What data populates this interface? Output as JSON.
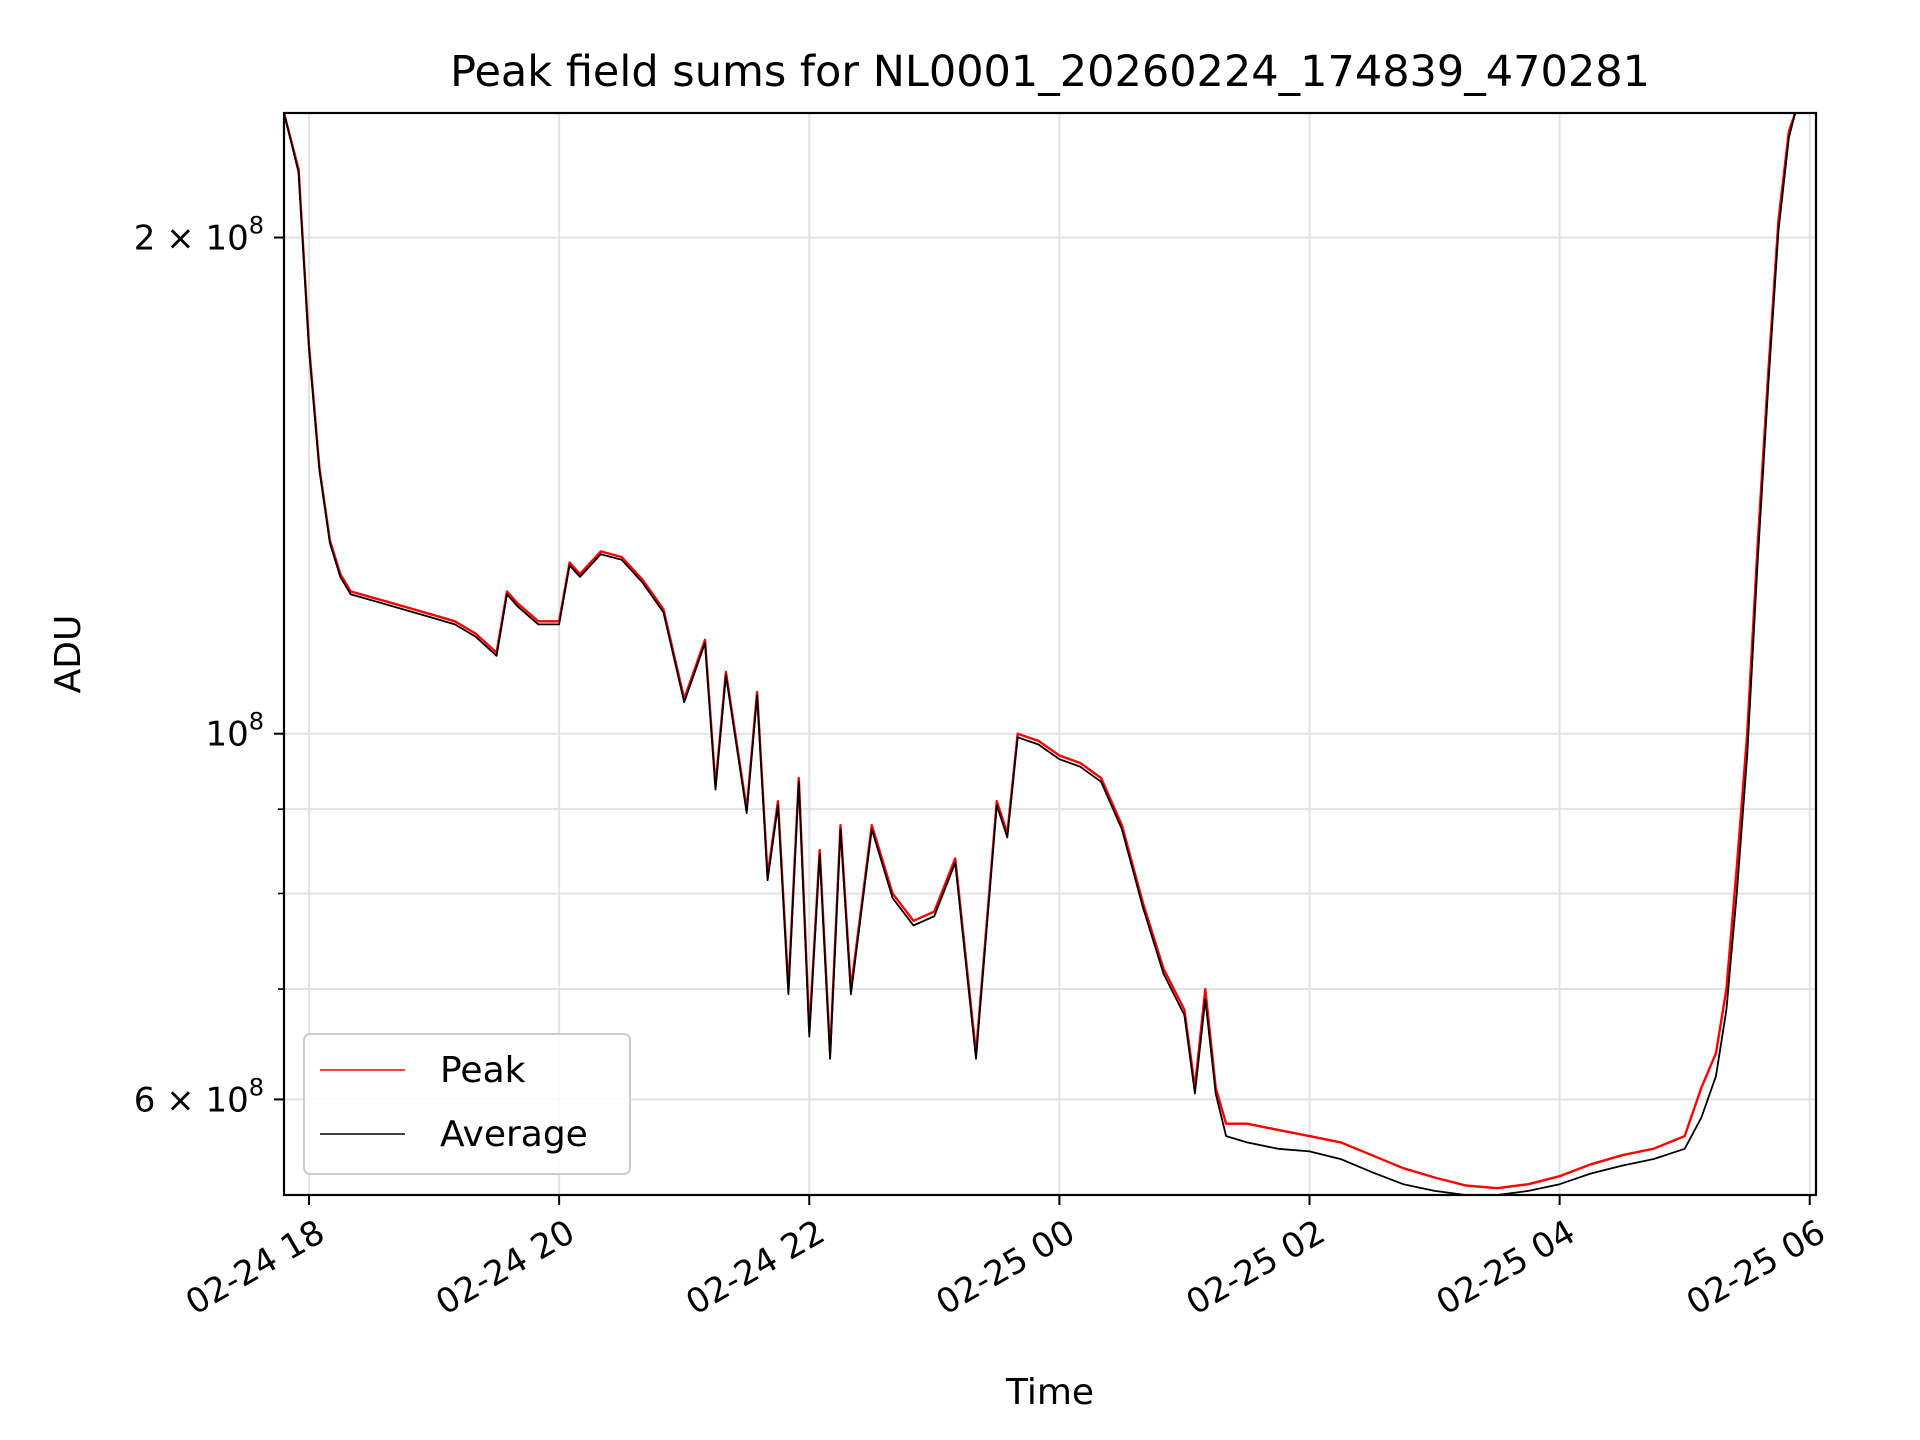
{
  "chart_data": {
    "type": "line",
    "title": "Peak field sums for NL0001_20260224_174839_470281",
    "xlabel": "Time",
    "ylabel": "ADU",
    "yscale": "log",
    "xlim": [
      "2026-02-24 17:48",
      "2026-02-25 06:03"
    ],
    "ylim": [
      52500000,
      238000000
    ],
    "grid": true,
    "legend_placement": "lower-left",
    "x_ticks": [
      {
        "value": "2026-02-24 18:00",
        "label": "02-24 18"
      },
      {
        "value": "2026-02-24 20:00",
        "label": "02-24 20"
      },
      {
        "value": "2026-02-24 22:00",
        "label": "02-24 22"
      },
      {
        "value": "2026-02-25 00:00",
        "label": "02-25 00"
      },
      {
        "value": "2026-02-25 02:00",
        "label": "02-25 02"
      },
      {
        "value": "2026-02-25 04:00",
        "label": "02-25 04"
      },
      {
        "value": "2026-02-25 06:00",
        "label": "02-25 06"
      }
    ],
    "y_major_ticks": [
      {
        "value": 200000000,
        "mantissa": "2",
        "exponent": "8"
      },
      {
        "value": 100000000,
        "mantissa": "",
        "exponent": "8"
      },
      {
        "value": 60000000,
        "mantissa": "6",
        "exponent": "8"
      }
    ],
    "y_minor_ticks": [
      70000000,
      80000000,
      90000000
    ],
    "series": [
      {
        "name": "Peak",
        "color": "#ff0000",
        "x": [
          "2026-02-24 17:48",
          "2026-02-24 17:55",
          "2026-02-24 18:00",
          "2026-02-24 18:05",
          "2026-02-24 18:10",
          "2026-02-24 18:15",
          "2026-02-24 18:20",
          "2026-02-24 18:30",
          "2026-02-24 18:40",
          "2026-02-24 18:50",
          "2026-02-24 19:00",
          "2026-02-24 19:10",
          "2026-02-24 19:20",
          "2026-02-24 19:30",
          "2026-02-24 19:35",
          "2026-02-24 19:40",
          "2026-02-24 19:50",
          "2026-02-24 20:00",
          "2026-02-24 20:05",
          "2026-02-24 20:10",
          "2026-02-24 20:20",
          "2026-02-24 20:30",
          "2026-02-24 20:40",
          "2026-02-24 20:50",
          "2026-02-24 21:00",
          "2026-02-24 21:10",
          "2026-02-24 21:15",
          "2026-02-24 21:20",
          "2026-02-24 21:30",
          "2026-02-24 21:35",
          "2026-02-24 21:40",
          "2026-02-24 21:45",
          "2026-02-24 21:50",
          "2026-02-24 21:55",
          "2026-02-24 22:00",
          "2026-02-24 22:05",
          "2026-02-24 22:10",
          "2026-02-24 22:15",
          "2026-02-24 22:20",
          "2026-02-24 22:30",
          "2026-02-24 22:40",
          "2026-02-24 22:50",
          "2026-02-24 23:00",
          "2026-02-24 23:10",
          "2026-02-24 23:20",
          "2026-02-24 23:30",
          "2026-02-24 23:35",
          "2026-02-24 23:40",
          "2026-02-24 23:50",
          "2026-02-25 00:00",
          "2026-02-25 00:10",
          "2026-02-25 00:20",
          "2026-02-25 00:30",
          "2026-02-25 00:40",
          "2026-02-25 00:50",
          "2026-02-25 01:00",
          "2026-02-25 01:05",
          "2026-02-25 01:10",
          "2026-02-25 01:15",
          "2026-02-25 01:20",
          "2026-02-25 01:30",
          "2026-02-25 01:45",
          "2026-02-25 02:00",
          "2026-02-25 02:15",
          "2026-02-25 02:30",
          "2026-02-25 02:45",
          "2026-02-25 03:00",
          "2026-02-25 03:15",
          "2026-02-25 03:30",
          "2026-02-25 03:45",
          "2026-02-25 04:00",
          "2026-02-25 04:15",
          "2026-02-25 04:30",
          "2026-02-25 04:45",
          "2026-02-25 05:00",
          "2026-02-25 05:08",
          "2026-02-25 05:15",
          "2026-02-25 05:20",
          "2026-02-25 05:25",
          "2026-02-25 05:30",
          "2026-02-25 05:35",
          "2026-02-25 05:40",
          "2026-02-25 05:45",
          "2026-02-25 05:50",
          "2026-02-25 05:53"
        ],
        "values": [
          238000000,
          220000000,
          172000000,
          145000000,
          131000000,
          125000000,
          122000000,
          121000000,
          120000000,
          119000000,
          118000000,
          117000000,
          115000000,
          112000000,
          122000000,
          120000000,
          117000000,
          117000000,
          127000000,
          125000000,
          129000000,
          128000000,
          124000000,
          119000000,
          105000000,
          114000000,
          93000000,
          109000000,
          90000000,
          106000000,
          82000000,
          91000000,
          70000000,
          94000000,
          66000000,
          85000000,
          64000000,
          88000000,
          70000000,
          88000000,
          80000000,
          77000000,
          78000000,
          84000000,
          64000000,
          91000000,
          87000000,
          100000000,
          99000000,
          97000000,
          96000000,
          94000000,
          88000000,
          79000000,
          72000000,
          68000000,
          61000000,
          70000000,
          61000000,
          58000000,
          58000000,
          57500000,
          57000000,
          56500000,
          55500000,
          54500000,
          53800000,
          53200000,
          53000000,
          53300000,
          53900000,
          54800000,
          55500000,
          56000000,
          57000000,
          61000000,
          64000000,
          70000000,
          83000000,
          100000000,
          130000000,
          165000000,
          205000000,
          232000000,
          238000000
        ]
      },
      {
        "name": "Average",
        "color": "#000000",
        "x": [
          "2026-02-24 17:48",
          "2026-02-24 17:55",
          "2026-02-24 18:00",
          "2026-02-24 18:05",
          "2026-02-24 18:10",
          "2026-02-24 18:15",
          "2026-02-24 18:20",
          "2026-02-24 18:30",
          "2026-02-24 18:40",
          "2026-02-24 18:50",
          "2026-02-24 19:00",
          "2026-02-24 19:10",
          "2026-02-24 19:20",
          "2026-02-24 19:30",
          "2026-02-24 19:35",
          "2026-02-24 19:40",
          "2026-02-24 19:50",
          "2026-02-24 20:00",
          "2026-02-24 20:05",
          "2026-02-24 20:10",
          "2026-02-24 20:20",
          "2026-02-24 20:30",
          "2026-02-24 20:40",
          "2026-02-24 20:50",
          "2026-02-24 21:00",
          "2026-02-24 21:10",
          "2026-02-24 21:15",
          "2026-02-24 21:20",
          "2026-02-24 21:30",
          "2026-02-24 21:35",
          "2026-02-24 21:40",
          "2026-02-24 21:45",
          "2026-02-24 21:50",
          "2026-02-24 21:55",
          "2026-02-24 22:00",
          "2026-02-24 22:05",
          "2026-02-24 22:10",
          "2026-02-24 22:15",
          "2026-02-24 22:20",
          "2026-02-24 22:30",
          "2026-02-24 22:40",
          "2026-02-24 22:50",
          "2026-02-24 23:00",
          "2026-02-24 23:10",
          "2026-02-24 23:20",
          "2026-02-24 23:30",
          "2026-02-24 23:35",
          "2026-02-24 23:40",
          "2026-02-24 23:50",
          "2026-02-25 00:00",
          "2026-02-25 00:10",
          "2026-02-25 00:20",
          "2026-02-25 00:30",
          "2026-02-25 00:40",
          "2026-02-25 00:50",
          "2026-02-25 01:00",
          "2026-02-25 01:05",
          "2026-02-25 01:10",
          "2026-02-25 01:15",
          "2026-02-25 01:20",
          "2026-02-25 01:30",
          "2026-02-25 01:45",
          "2026-02-25 02:00",
          "2026-02-25 02:15",
          "2026-02-25 02:30",
          "2026-02-25 02:45",
          "2026-02-25 03:00",
          "2026-02-25 03:15",
          "2026-02-25 03:30",
          "2026-02-25 03:45",
          "2026-02-25 04:00",
          "2026-02-25 04:15",
          "2026-02-25 04:30",
          "2026-02-25 04:45",
          "2026-02-25 05:00",
          "2026-02-25 05:08",
          "2026-02-25 05:15",
          "2026-02-25 05:20",
          "2026-02-25 05:25",
          "2026-02-25 05:30",
          "2026-02-25 05:35",
          "2026-02-25 05:40",
          "2026-02-25 05:45",
          "2026-02-25 05:50",
          "2026-02-25 05:53"
        ],
        "values": [
          238000000,
          219000000,
          171000000,
          144500000,
          130500000,
          124500000,
          121500000,
          120500000,
          119500000,
          118500000,
          117500000,
          116500000,
          114500000,
          111500000,
          121500000,
          119500000,
          116500000,
          116500000,
          126500000,
          124500000,
          128500000,
          127500000,
          123500000,
          118500000,
          104500000,
          113500000,
          92500000,
          108500000,
          89500000,
          105500000,
          81500000,
          90500000,
          69500000,
          93500000,
          65500000,
          84500000,
          63500000,
          87500000,
          69500000,
          87500000,
          79500000,
          76500000,
          77500000,
          83500000,
          63500000,
          90500000,
          86500000,
          99500000,
          98500000,
          96500000,
          95500000,
          93500000,
          87500000,
          78500000,
          71500000,
          67500000,
          60500000,
          69000000,
          60500000,
          57000000,
          56500000,
          56000000,
          55800000,
          55200000,
          54200000,
          53300000,
          52800000,
          52500000,
          52500000,
          52800000,
          53300000,
          54100000,
          54700000,
          55200000,
          56000000,
          58500000,
          62000000,
          68000000,
          80000000,
          97000000,
          127000000,
          162000000,
          202000000,
          230000000,
          238000000
        ]
      }
    ]
  }
}
